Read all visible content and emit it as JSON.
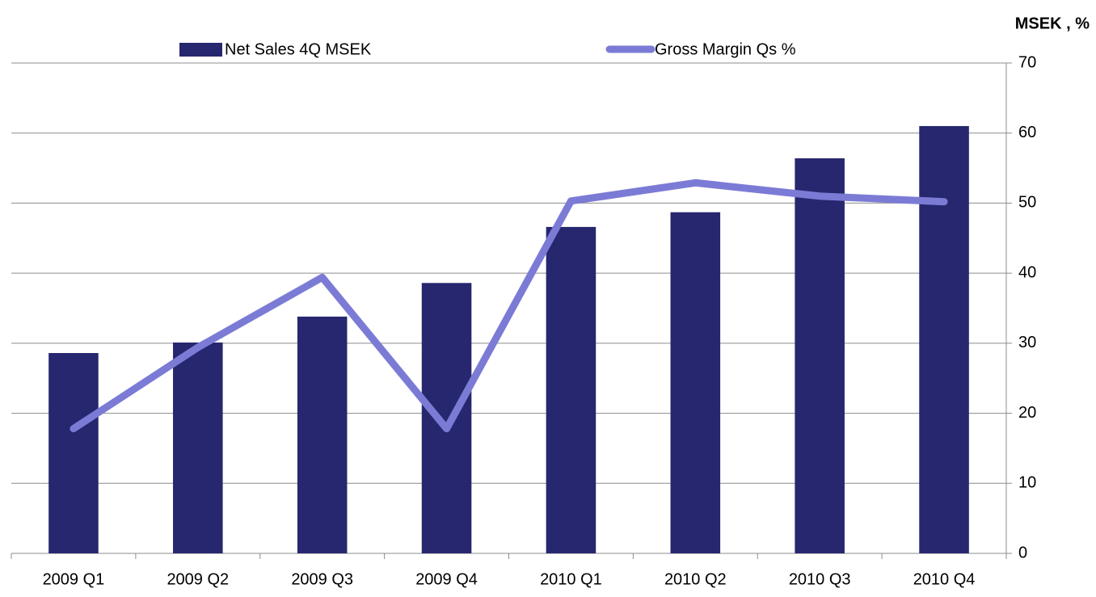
{
  "chart_data": {
    "type": "bar_line",
    "title": "MSEK , %",
    "categories": [
      "2009 Q1",
      "2009 Q2",
      "2009 Q3",
      "2009 Q4",
      "2010 Q1",
      "2010 Q2",
      "2010 Q3",
      "2010 Q4"
    ],
    "series": [
      {
        "name": "Net Sales 4Q MSEK",
        "type": "bar",
        "color": "#27276f",
        "values": [
          28.6,
          30.1,
          33.8,
          38.6,
          46.6,
          48.7,
          56.4,
          61.0
        ]
      },
      {
        "name": "Gross Margin Qs %",
        "type": "line",
        "color": "#7b7bd6",
        "values": [
          17.8,
          29.4,
          39.4,
          17.8,
          50.3,
          52.9,
          51.0,
          50.2
        ]
      }
    ],
    "ylim": [
      0,
      70
    ],
    "yticks": [
      0,
      10,
      20,
      30,
      40,
      50,
      60,
      70
    ],
    "grid": true,
    "y_axis_side": "right",
    "legend": "top"
  }
}
